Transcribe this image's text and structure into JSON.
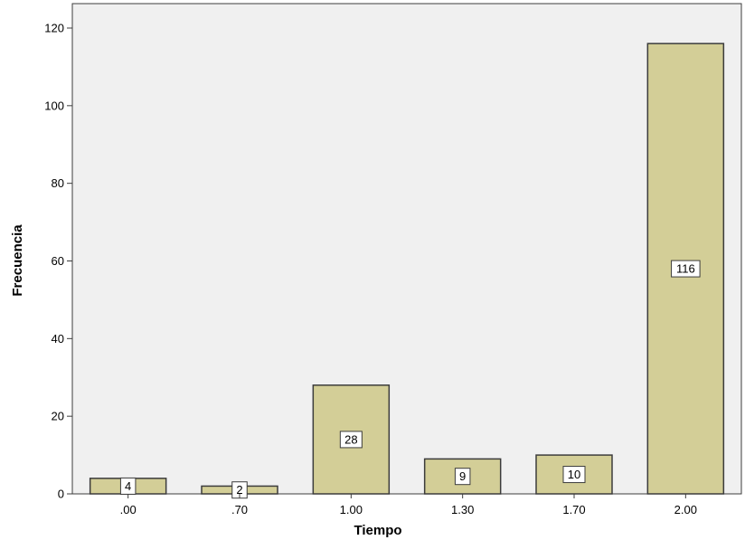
{
  "chart_data": {
    "type": "bar",
    "title": "",
    "xlabel": "Tiempo",
    "ylabel": "Frecuencia",
    "categories": [
      ".00",
      ".70",
      "1.00",
      "1.30",
      "1.70",
      "2.00"
    ],
    "values": [
      4,
      2,
      28,
      9,
      10,
      116
    ],
    "data_labels": [
      "4",
      "2",
      "28",
      "9",
      "10",
      "116"
    ],
    "ylim": [
      0,
      120
    ],
    "yticks": [
      0,
      20,
      40,
      60,
      80,
      100,
      120
    ],
    "ytick_labels": [
      "0",
      "20",
      "40",
      "60",
      "80",
      "100",
      "120"
    ],
    "grid": false,
    "legend": "none",
    "colors": {
      "plot_background": "#f0f0f0",
      "bar_fill": "#d3ce97",
      "bar_stroke": "#3c3c3c",
      "axis": "#3c3c3c"
    }
  }
}
